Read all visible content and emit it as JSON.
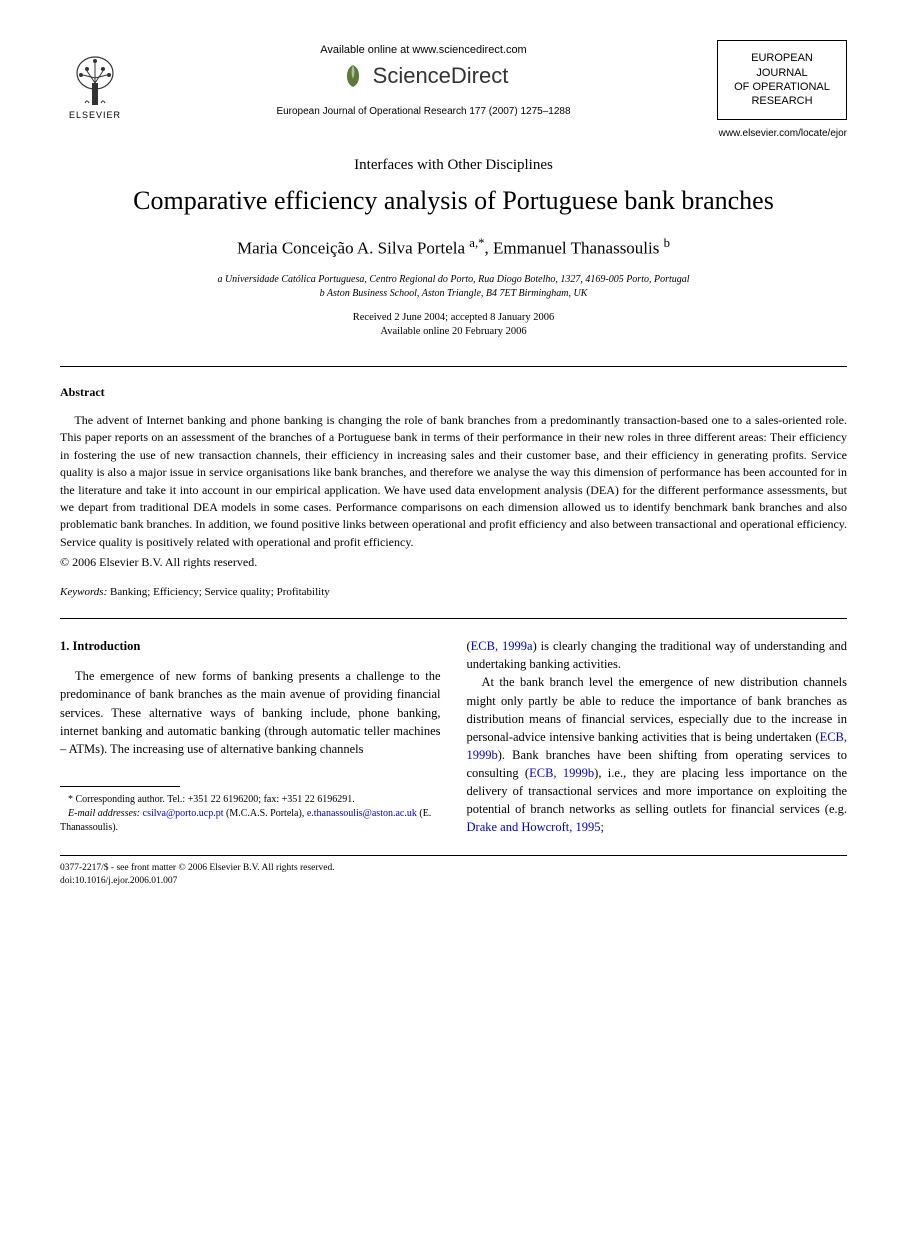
{
  "header": {
    "available_online": "Available online at www.sciencedirect.com",
    "sciencedirect": "ScienceDirect",
    "journal_reference": "European Journal of Operational Research 177 (2007) 1275–1288",
    "elsevier_label": "ELSEVIER",
    "journal_box_line1": "EUROPEAN",
    "journal_box_line2": "JOURNAL",
    "journal_box_line3": "OF OPERATIONAL",
    "journal_box_line4": "RESEARCH",
    "journal_url": "www.elsevier.com/locate/ejor"
  },
  "article": {
    "section": "Interfaces with Other Disciplines",
    "title": "Comparative efficiency analysis of Portuguese bank branches",
    "authors_html": "Maria Conceição A. Silva Portela <sup>a,*</sup>, Emmanuel Thanassoulis <sup>b</sup>",
    "affiliation_a": "a Universidade Católica Portuguesa, Centro Regional do Porto, Rua Diogo Botelho, 1327, 4169-005 Porto, Portugal",
    "affiliation_b": "b Aston Business School, Aston Triangle, B4 7ET Birmingham, UK",
    "dates_line1": "Received 2 June 2004; accepted 8 January 2006",
    "dates_line2": "Available online 20 February 2006"
  },
  "abstract": {
    "heading": "Abstract",
    "body": "The advent of Internet banking and phone banking is changing the role of bank branches from a predominantly transaction-based one to a sales-oriented role. This paper reports on an assessment of the branches of a Portuguese bank in terms of their performance in their new roles in three different areas: Their efficiency in fostering the use of new transaction channels, their efficiency in increasing sales and their customer base, and their efficiency in generating profits. Service quality is also a major issue in service organisations like bank branches, and therefore we analyse the way this dimension of performance has been accounted for in the literature and take it into account in our empirical application. We have used data envelopment analysis (DEA) for the different performance assessments, but we depart from traditional DEA models in some cases. Performance comparisons on each dimension allowed us to identify benchmark bank branches and also problematic bank branches. In addition, we found positive links between operational and profit efficiency and also between transactional and operational efficiency. Service quality is positively related with operational and profit efficiency.",
    "copyright": "© 2006 Elsevier B.V. All rights reserved.",
    "keywords_label": "Keywords:",
    "keywords_value": " Banking; Efficiency; Service quality; Profitability"
  },
  "intro": {
    "heading": "1. Introduction",
    "left_para": "The emergence of new forms of banking presents a challenge to the predominance of bank branches as the main avenue of providing financial services. These alternative ways of banking include, phone banking, internet banking and automatic banking (through automatic teller machines – ATMs). The increasing use of alternative banking channels",
    "right_pre_link": "(",
    "right_link1": "ECB, 1999a",
    "right_post_link1": ") is clearly changing the traditional way of understanding and undertaking banking activities.",
    "right_para2_a": "At the bank branch level the emergence of new distribution channels might only partly be able to reduce the importance of bank branches as distribution means of financial services, especially due to the increase in personal-advice intensive banking activities that is being undertaken (",
    "right_link2": "ECB, 1999b",
    "right_para2_b": "). Bank branches have been shifting from operating services to consulting (",
    "right_link3": "ECB, 1999b",
    "right_para2_c": "), i.e., they are placing less importance on the delivery of transactional services and more importance on exploiting the potential of branch networks as selling outlets for financial services (e.g. ",
    "right_link4": "Drake and Howcroft, 1995;"
  },
  "footnote": {
    "corresponding": "* Corresponding author. Tel.: +351 22 6196200; fax: +351 22 6196291.",
    "email_label": "E-mail addresses:",
    "email1": "csilva@porto.ucp.pt",
    "email1_name": " (M.C.A.S. Portela), ",
    "email2": "e.thanassoulis@aston.ac.uk",
    "email2_name": " (E. Thanassoulis)."
  },
  "bottom": {
    "line1": "0377-2217/$ - see front matter © 2006 Elsevier B.V. All rights reserved.",
    "line2": "doi:10.1016/j.ejor.2006.01.007"
  },
  "colors": {
    "link_color": "#0000cc",
    "text_color": "#000000",
    "background": "#ffffff",
    "sd_icon_fill": "#5a7a3a"
  }
}
